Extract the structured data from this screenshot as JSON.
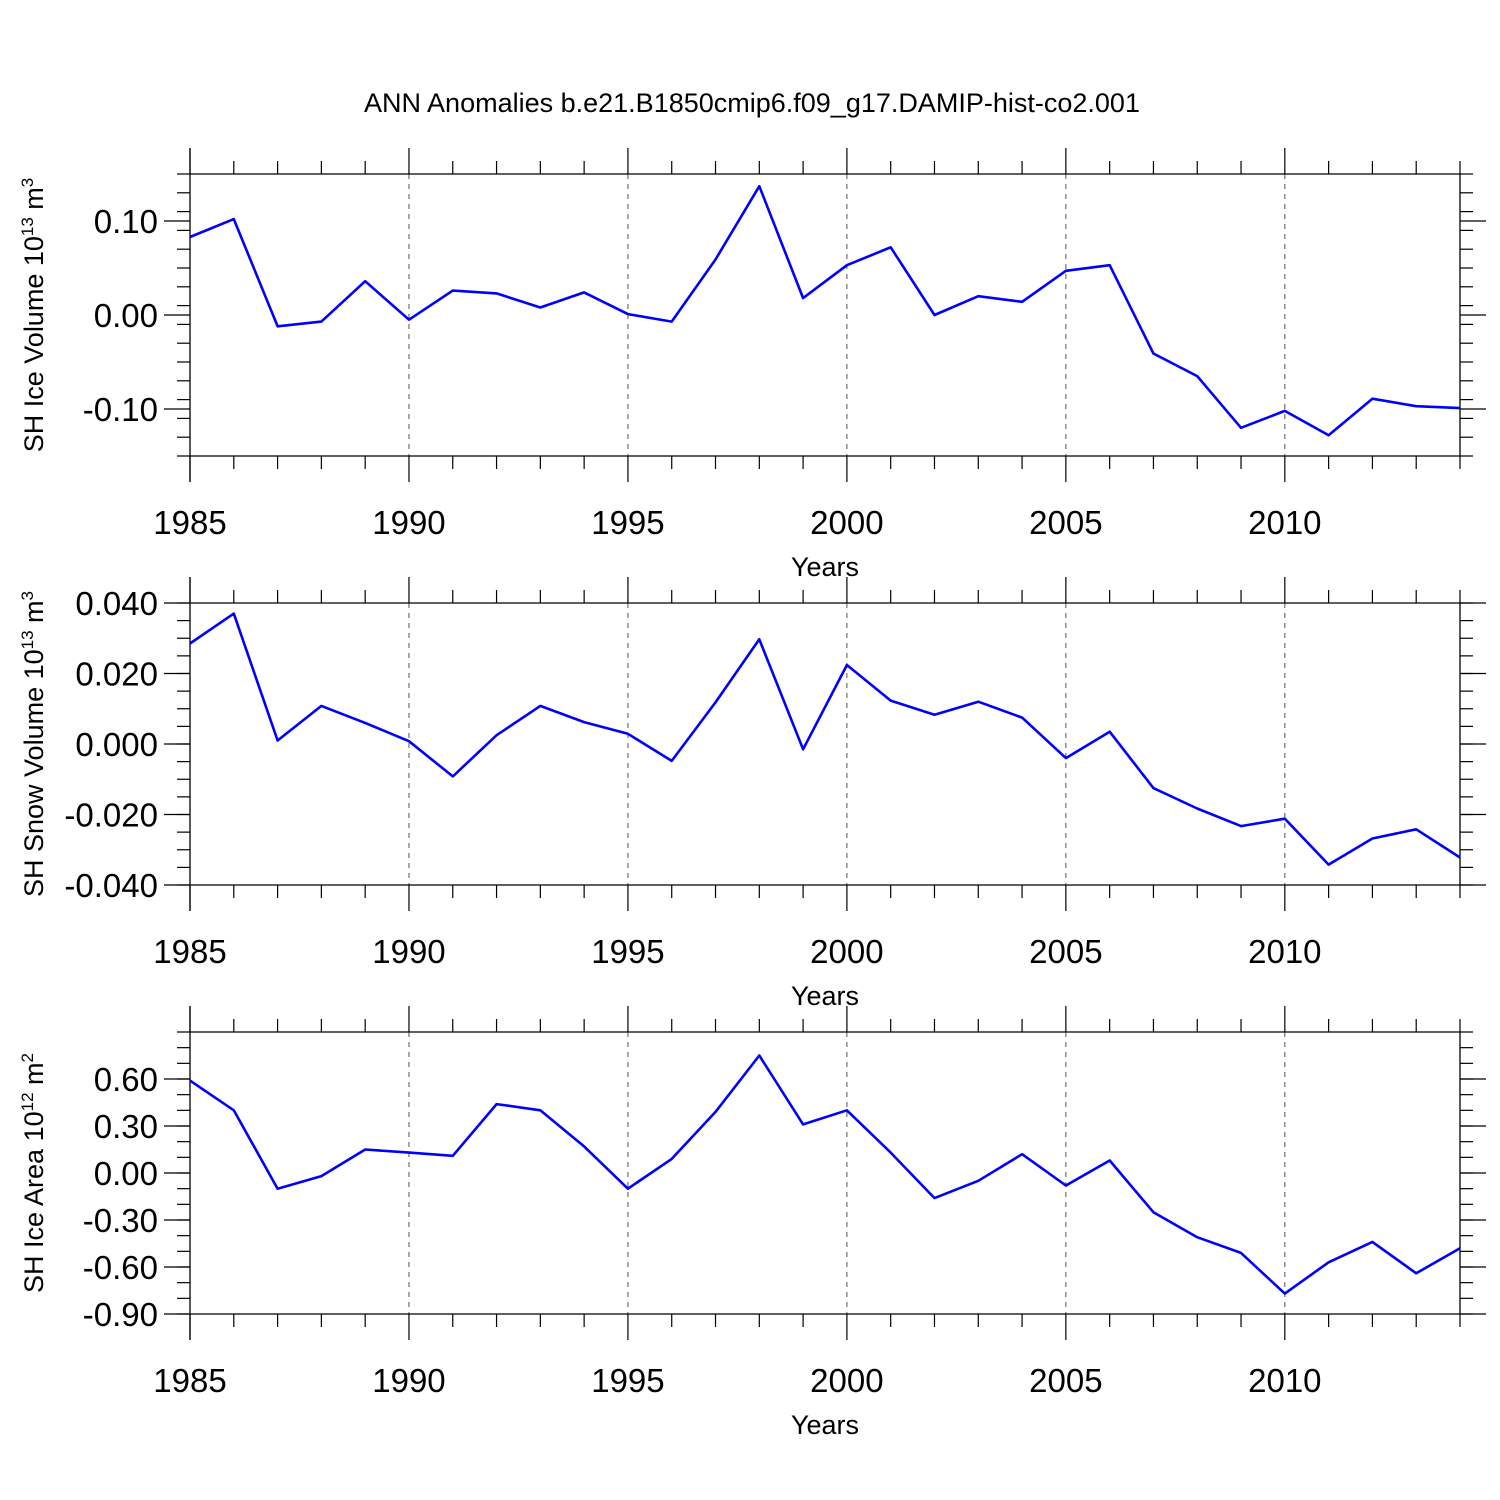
{
  "title": "ANN Anomalies b.e21.B1850cmip6.f09_g17.DAMIP-hist-co2.001",
  "colors": {
    "line": "#0000ff",
    "axes": "#000000",
    "grid": "#555555"
  },
  "chart_data": [
    {
      "type": "line",
      "ylabel_main": "SH Ice Volume 10",
      "ylabel_exp": "13",
      "ylabel_unit": " m",
      "ylabel_unit_exp": "3",
      "xlabel": "Years",
      "xlim": [
        1985,
        2014
      ],
      "ylim": [
        -0.15,
        0.15
      ],
      "yticks": [
        -0.1,
        0.0,
        0.1
      ],
      "ytick_labels": [
        "-0.10",
        "0.00",
        "0.10"
      ],
      "yminor_step": 0.02,
      "xticks": [
        1985,
        1990,
        1995,
        2000,
        2005,
        2010
      ],
      "xtick_labels": [
        "1985",
        "1990",
        "1995",
        "2000",
        "2005",
        "2010"
      ],
      "grid_x": [
        1990,
        1995,
        2000,
        2005,
        2010
      ],
      "series": [
        {
          "x": [
            1985,
            1986,
            1987,
            1988,
            1989,
            1990,
            1991,
            1992,
            1993,
            1994,
            1995,
            1996,
            1997,
            1998,
            1999,
            2000,
            2001,
            2002,
            2003,
            2004,
            2005,
            2006,
            2007,
            2008,
            2009,
            2010,
            2011,
            2012,
            2013,
            2014
          ],
          "values": [
            0.083,
            0.102,
            -0.012,
            -0.007,
            0.036,
            -0.005,
            0.026,
            0.023,
            0.008,
            0.024,
            0.001,
            -0.007,
            0.059,
            0.137,
            0.018,
            0.053,
            0.072,
            0.0,
            0.02,
            0.014,
            0.047,
            0.053,
            -0.041,
            -0.065,
            -0.12,
            -0.102,
            -0.128,
            -0.089,
            -0.097,
            -0.099
          ]
        }
      ]
    },
    {
      "type": "line",
      "ylabel_main": "SH Snow Volume 10",
      "ylabel_exp": "13",
      "ylabel_unit": " m",
      "ylabel_unit_exp": "3",
      "xlabel": "Years",
      "xlim": [
        1985,
        2014
      ],
      "ylim": [
        -0.04,
        0.04
      ],
      "yticks": [
        -0.04,
        -0.02,
        0.0,
        0.02,
        0.04
      ],
      "ytick_labels": [
        "-0.040",
        "-0.020",
        "0.000",
        "0.020",
        "0.040"
      ],
      "yminor_step": 0.005,
      "xticks": [
        1985,
        1990,
        1995,
        2000,
        2005,
        2010
      ],
      "xtick_labels": [
        "1985",
        "1990",
        "1995",
        "2000",
        "2005",
        "2010"
      ],
      "grid_x": [
        1990,
        1995,
        2000,
        2005,
        2010
      ],
      "series": [
        {
          "x": [
            1985,
            1986,
            1987,
            1988,
            1989,
            1990,
            1991,
            1992,
            1993,
            1994,
            1995,
            1996,
            1997,
            1998,
            1999,
            2000,
            2001,
            2002,
            2003,
            2004,
            2005,
            2006,
            2007,
            2008,
            2009,
            2010,
            2011,
            2012,
            2013,
            2014
          ],
          "values": [
            0.0285,
            0.037,
            0.001,
            0.0108,
            0.006,
            0.0008,
            -0.0092,
            0.0025,
            0.0108,
            0.0062,
            0.0029,
            -0.0048,
            0.0118,
            0.0297,
            -0.0015,
            0.0224,
            0.0123,
            0.0083,
            0.012,
            0.0075,
            -0.004,
            0.0035,
            -0.0125,
            -0.0183,
            -0.0233,
            -0.0212,
            -0.0342,
            -0.0268,
            -0.0242,
            -0.0322
          ]
        }
      ]
    },
    {
      "type": "line",
      "ylabel_main": "SH Ice Area 10",
      "ylabel_exp": "12",
      "ylabel_unit": " m",
      "ylabel_unit_exp": "2",
      "xlabel": "Years",
      "xlim": [
        1985,
        2014
      ],
      "ylim": [
        -0.9,
        0.9
      ],
      "yticks": [
        -0.9,
        -0.6,
        -0.3,
        0.0,
        0.3,
        0.6
      ],
      "ytick_labels": [
        "-0.90",
        "-0.60",
        "-0.30",
        "0.00",
        "0.30",
        "0.60"
      ],
      "yminor_step": 0.1,
      "xticks": [
        1985,
        1990,
        1995,
        2000,
        2005,
        2010
      ],
      "xtick_labels": [
        "1985",
        "1990",
        "1995",
        "2000",
        "2005",
        "2010"
      ],
      "grid_x": [
        1990,
        1995,
        2000,
        2005,
        2010
      ],
      "series": [
        {
          "x": [
            1985,
            1986,
            1987,
            1988,
            1989,
            1990,
            1991,
            1992,
            1993,
            1994,
            1995,
            1996,
            1997,
            1998,
            1999,
            2000,
            2001,
            2002,
            2003,
            2004,
            2005,
            2006,
            2007,
            2008,
            2009,
            2010,
            2011,
            2012,
            2013,
            2014
          ],
          "values": [
            0.59,
            0.4,
            -0.1,
            -0.02,
            0.15,
            0.13,
            0.11,
            0.44,
            0.4,
            0.17,
            -0.1,
            0.09,
            0.39,
            0.75,
            0.31,
            0.4,
            0.13,
            -0.16,
            -0.05,
            0.12,
            -0.08,
            0.08,
            -0.25,
            -0.41,
            -0.51,
            -0.77,
            -0.57,
            -0.44,
            -0.64,
            -0.48
          ]
        }
      ]
    }
  ]
}
